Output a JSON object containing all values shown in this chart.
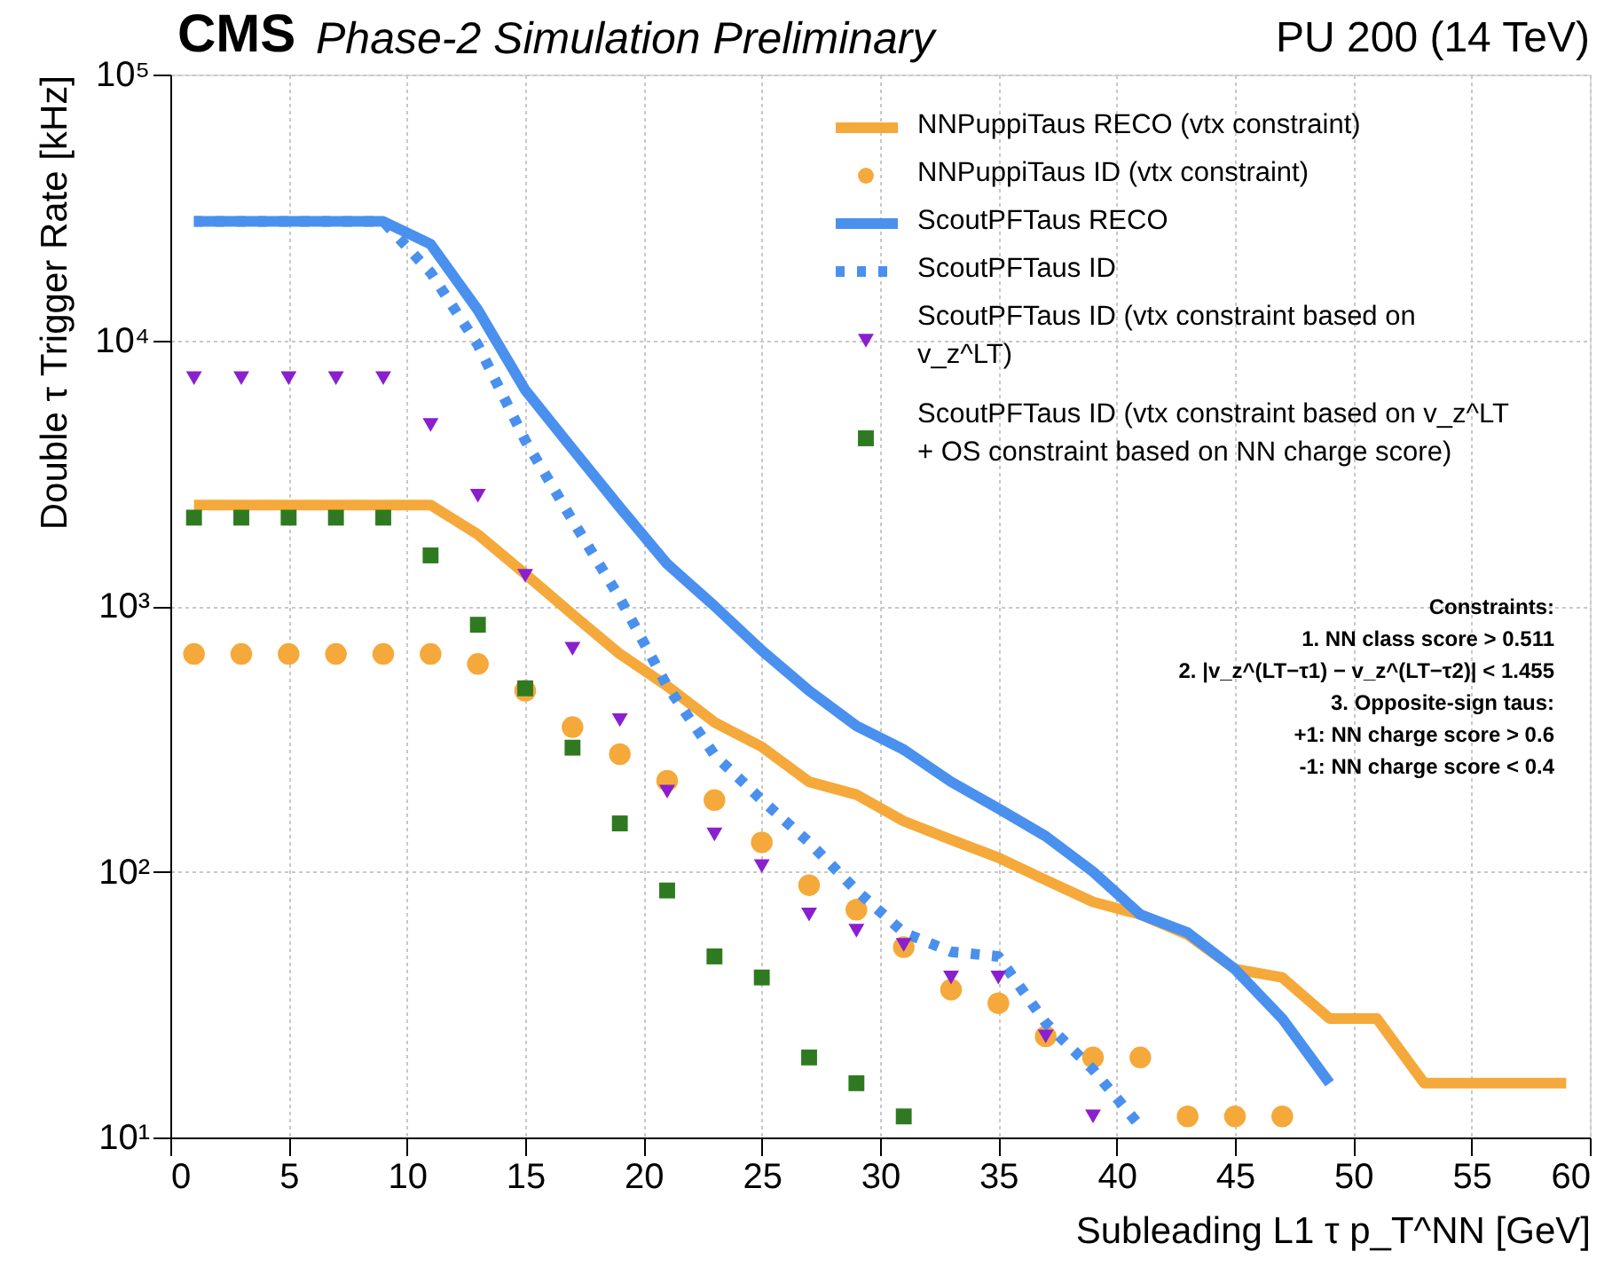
{
  "chart_data": {
    "type": "line",
    "title": "CMS",
    "subtitle": "Phase-2 Simulation Preliminary",
    "xlabel": "Subleading L1 τ p_T^NN [GeV]",
    "ylabel": "Double τ Trigger Rate [kHz]",
    "annotations": [
      "PU 200 (14 TeV)",
      "Constraints:",
      "1. NN class score > 0.511",
      "2. |v_z^(LT−τ1) − v_z^(LT−τ2)| < 1.455",
      "3. Opposite-sign taus:",
      "+1: NN charge score > 0.6",
      "-1: NN charge score < 0.4"
    ],
    "log": "y",
    "grid": true,
    "legend": "top right",
    "xlim": [
      0,
      60
    ],
    "xticks": [
      0,
      5,
      10,
      15,
      20,
      25,
      30,
      35,
      40,
      45,
      50,
      55,
      60
    ],
    "ylim": [
      10,
      100000
    ],
    "yticks": [
      {
        "value": 10,
        "label": "10¹"
      },
      {
        "value": 100,
        "label": "10²"
      },
      {
        "value": 1000,
        "label": "10³"
      },
      {
        "value": 10000,
        "label": "10⁴"
      },
      {
        "value": 100000,
        "label": "10⁵"
      }
    ],
    "series": [
      {
        "name": "NNPuppiTaus RECO (vtx constraint)",
        "type": "line",
        "line_style": "solid",
        "color": "#f5a93a",
        "x": [
          1,
          3,
          5,
          7,
          9,
          11,
          13,
          15,
          17,
          19,
          21,
          23,
          25,
          27,
          29,
          31,
          33,
          35,
          37,
          39,
          41,
          43,
          45,
          47,
          49,
          51,
          53,
          55,
          57,
          59
        ],
        "values": [
          2400,
          2400,
          2400,
          2400,
          2400,
          2400,
          1860,
          1320,
          930,
          660,
          500,
          365,
          295,
          218,
          195,
          155,
          132,
          113,
          93,
          77,
          69,
          58,
          43,
          40,
          28,
          28,
          16,
          16,
          16,
          16
        ]
      },
      {
        "name": "NNPuppiTaus ID (vtx constraint)",
        "type": "scatter",
        "marker": "circle",
        "color": "#f5a93a",
        "x": [
          1,
          3,
          5,
          7,
          9,
          11,
          13,
          15,
          17,
          19,
          21,
          23,
          25,
          27,
          29,
          31,
          33,
          35,
          37,
          39,
          41,
          43,
          45,
          47
        ],
        "values": [
          660,
          660,
          660,
          660,
          660,
          660,
          605,
          480,
          350,
          277,
          220,
          186,
          129,
          89,
          72,
          52,
          36,
          32,
          24,
          20,
          20,
          12,
          12,
          12
        ]
      },
      {
        "name": "ScoutPFTaus RECO",
        "type": "line",
        "line_style": "solid",
        "color": "#4a90ee",
        "x": [
          1,
          3,
          5,
          7,
          9,
          11,
          13,
          15,
          17,
          19,
          21,
          23,
          25,
          27,
          29,
          31,
          33,
          35,
          37,
          39,
          41,
          43,
          45,
          47,
          49
        ],
        "values": [
          28000,
          28000,
          28000,
          28000,
          28000,
          23000,
          13000,
          6500,
          3900,
          2350,
          1440,
          1000,
          680,
          480,
          354,
          288,
          218,
          173,
          136,
          100,
          69,
          59,
          43,
          28,
          16
        ]
      },
      {
        "name": "ScoutPFTaus ID",
        "type": "line",
        "line_style": "dotted",
        "color": "#4a90ee",
        "x": [
          1,
          3,
          5,
          7,
          9,
          11,
          13,
          15,
          17,
          19,
          21,
          23,
          25,
          27,
          29,
          31,
          33,
          35,
          37,
          39,
          41
        ],
        "values": [
          28000,
          28000,
          28000,
          28000,
          28000,
          18000,
          9600,
          4200,
          2100,
          1070,
          500,
          275,
          186,
          129,
          85,
          59,
          50,
          48,
          27,
          18,
          11
        ]
      },
      {
        "name": "ScoutPFTaus ID (vtx constraint based on v_z^LT)",
        "type": "scatter",
        "marker": "triangle",
        "color": "#8a1fd0",
        "x": [
          1,
          3,
          5,
          7,
          9,
          11,
          13,
          15,
          17,
          19,
          21,
          23,
          25,
          27,
          29,
          31,
          33,
          35,
          37,
          39
        ],
        "values": [
          7200,
          7200,
          7200,
          7200,
          7200,
          4800,
          2600,
          1300,
          690,
          372,
          200,
          138,
          105,
          69,
          60,
          53,
          40,
          40,
          24,
          12
        ]
      },
      {
        "name": "ScoutPFTaus ID (vtx constraint based on v_z^LT + OS constraint based on NN charge score)",
        "type": "scatter",
        "marker": "square",
        "color": "#2f7a20",
        "x": [
          1,
          3,
          5,
          7,
          9,
          11,
          13,
          15,
          17,
          19,
          21,
          23,
          25,
          27,
          29,
          31
        ],
        "values": [
          2150,
          2150,
          2150,
          2150,
          2150,
          1550,
          850,
          490,
          293,
          152,
          85,
          48,
          40,
          20,
          16,
          12
        ]
      }
    ]
  }
}
